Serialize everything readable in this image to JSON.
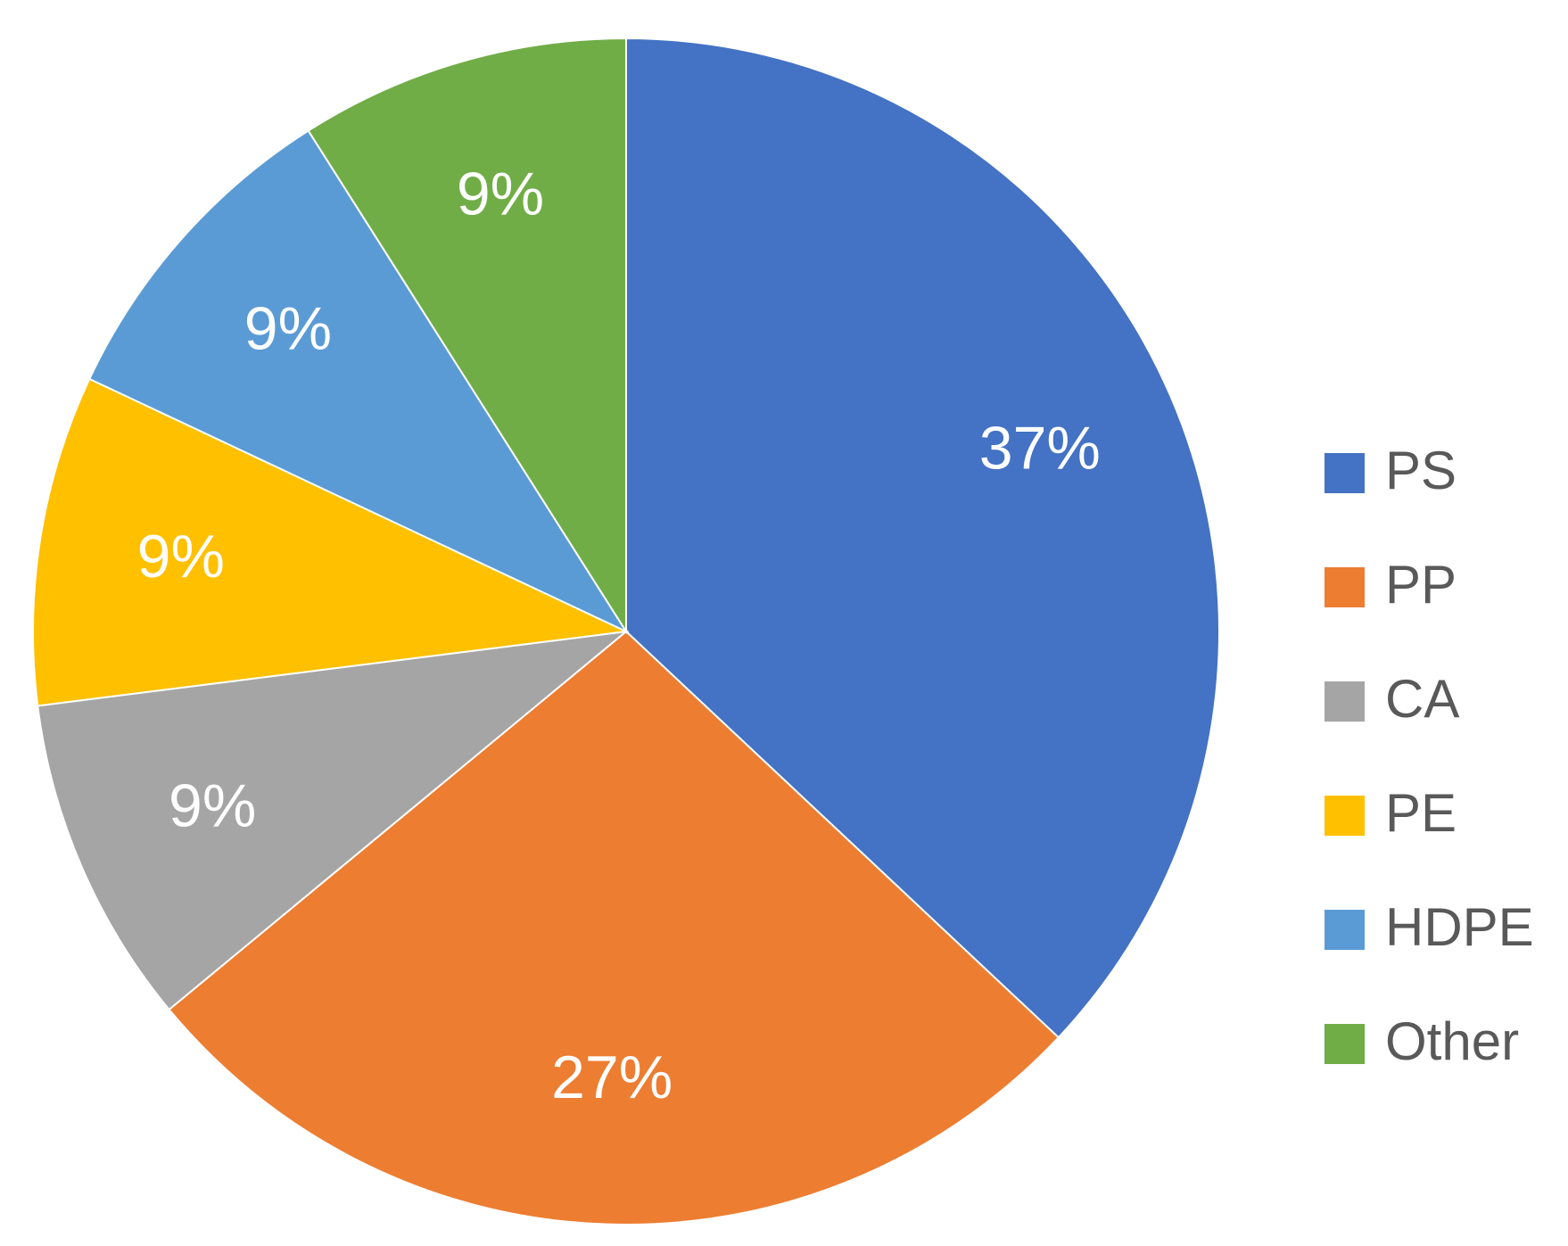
{
  "chart_data": {
    "type": "pie",
    "categories": [
      "PS",
      "PP",
      "CA",
      "PE",
      "HDPE",
      "Other"
    ],
    "values": [
      37,
      27,
      9,
      9,
      9,
      9
    ],
    "value_labels": [
      "37%",
      "27%",
      "9%",
      "9%",
      "9%",
      "9%"
    ],
    "colors": [
      "#4472c4",
      "#ed7d31",
      "#a5a5a5",
      "#ffc000",
      "#5b9bd5",
      "#70ad47"
    ],
    "legend": "right"
  }
}
